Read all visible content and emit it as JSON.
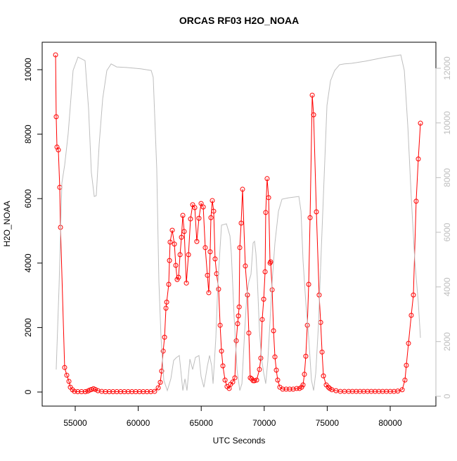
{
  "chart_data": {
    "type": "line",
    "title": "ORCAS RF03 H2O_NOAA",
    "x_label": "UTC Seconds",
    "y_label": "H2O_NOAA",
    "xlim": [
      52377,
      83627
    ],
    "ylim": [
      -437,
      10852
    ],
    "y2lim": [
      -360,
      12953
    ],
    "xticks": [
      55000,
      60000,
      65000,
      70000,
      75000,
      80000
    ],
    "yticks": [
      0,
      2000,
      4000,
      6000,
      8000,
      10000
    ],
    "y2ticks": [
      0,
      2000,
      4000,
      6000,
      8000,
      10000,
      12000
    ],
    "series": [
      {
        "color": "#ff0000",
        "marker": "circle",
        "x": [
          53440,
          53490,
          53550,
          53660,
          53770,
          53830,
          54160,
          54330,
          54500,
          54610,
          54780,
          54940,
          55200,
          55500,
          55800,
          56000,
          56150,
          56300,
          56450,
          56600,
          56800,
          57100,
          57400,
          57700,
          58000,
          58300,
          58600,
          58900,
          59200,
          59500,
          59800,
          60100,
          60400,
          60700,
          61000,
          61300,
          61585,
          61750,
          61860,
          61980,
          62090,
          62200,
          62260,
          62420,
          62480,
          62530,
          62700,
          62870,
          62980,
          63090,
          63200,
          63320,
          63430,
          63540,
          63650,
          63820,
          63990,
          64150,
          64320,
          64490,
          64650,
          64820,
          64990,
          65160,
          65320,
          65490,
          65600,
          65710,
          65770,
          65880,
          65990,
          66100,
          66220,
          66380,
          66500,
          66610,
          66720,
          66890,
          67050,
          67220,
          67330,
          67500,
          67670,
          67780,
          67890,
          67950,
          68010,
          68060,
          68170,
          68280,
          68500,
          68670,
          68780,
          68890,
          69000,
          69120,
          69230,
          69400,
          69620,
          69730,
          69840,
          69960,
          70070,
          70120,
          70230,
          70350,
          70460,
          70510,
          70630,
          70740,
          70850,
          70960,
          71070,
          71240,
          71460,
          71740,
          72020,
          72300,
          72580,
          72800,
          72970,
          73080,
          73190,
          73300,
          73420,
          73530,
          73640,
          73810,
          73920,
          74140,
          74360,
          74480,
          74590,
          74700,
          74920,
          75090,
          75200,
          75370,
          75700,
          76040,
          76370,
          76700,
          77000,
          77300,
          77600,
          77900,
          78200,
          78500,
          78800,
          79100,
          79400,
          79700,
          80000,
          80300,
          80600,
          80950,
          81170,
          81280,
          81450,
          81670,
          81840,
          82060,
          82230,
          82400
        ],
        "values": [
          10460,
          8540,
          7600,
          7510,
          6350,
          5110,
          760,
          520,
          330,
          150,
          70,
          20,
          10,
          10,
          10,
          30,
          60,
          80,
          100,
          80,
          40,
          20,
          10,
          10,
          10,
          10,
          10,
          10,
          10,
          10,
          10,
          10,
          10,
          10,
          10,
          20,
          130,
          300,
          650,
          1270,
          1700,
          2600,
          2790,
          3340,
          4080,
          4650,
          5020,
          4590,
          3930,
          3490,
          3560,
          4260,
          4800,
          5480,
          4980,
          3380,
          4260,
          5370,
          5810,
          5720,
          4670,
          5390,
          5850,
          5740,
          4480,
          3620,
          3080,
          4350,
          5410,
          5940,
          5610,
          4130,
          3670,
          3190,
          2070,
          1270,
          810,
          370,
          170,
          110,
          240,
          310,
          440,
          1590,
          2120,
          2360,
          2640,
          4480,
          5240,
          6290,
          3910,
          3010,
          1830,
          440,
          410,
          350,
          350,
          370,
          700,
          1050,
          2250,
          2880,
          3730,
          5570,
          6620,
          6030,
          4000,
          4040,
          3170,
          1900,
          1090,
          680,
          370,
          150,
          90,
          90,
          90,
          90,
          110,
          110,
          150,
          220,
          550,
          1110,
          2070,
          3340,
          5410,
          9210,
          8600,
          5590,
          3010,
          2160,
          1240,
          500,
          220,
          150,
          110,
          70,
          40,
          20,
          20,
          20,
          20,
          20,
          20,
          20,
          20,
          20,
          20,
          20,
          20,
          20,
          20,
          20,
          30,
          70,
          370,
          830,
          1510,
          2380,
          3010,
          5920,
          7230,
          8340
        ]
      },
      {
        "color": "#bebebe",
        "axis": "y2",
        "x": [
          53490,
          53720,
          53940,
          54160,
          54440,
          54830,
          55220,
          55780,
          56060,
          56280,
          56510,
          56670,
          56900,
          57180,
          57510,
          57850,
          58290,
          59070,
          60190,
          61030,
          61190,
          61470,
          61640,
          61810,
          62030,
          62310,
          62590,
          62810,
          63040,
          63260,
          63430,
          63540,
          63710,
          63870,
          64100,
          64320,
          64540,
          64820,
          64990,
          65210,
          65490,
          65660,
          65830,
          65940,
          66160,
          66330,
          66610,
          67000,
          67280,
          67390,
          67610,
          67840,
          68060,
          68230,
          68450,
          68620,
          68780,
          68950,
          69120,
          69230,
          69340,
          69450,
          69620,
          69790,
          69960,
          70120,
          70290,
          70460,
          70630,
          70850,
          71130,
          71410,
          71910,
          72750,
          72920,
          73080,
          73300,
          73530,
          73750,
          73920,
          74090,
          74310,
          74530,
          74760,
          74980,
          75260,
          75590,
          75980,
          76370,
          76930,
          78050,
          79440,
          80840,
          81120,
          81400,
          81670,
          81950,
          82230,
          82400
        ],
        "values": [
          980,
          4070,
          7800,
          8450,
          9610,
          11920,
          12410,
          12280,
          10510,
          8190,
          7310,
          7340,
          9220,
          10890,
          11920,
          12160,
          12050,
          12030,
          11980,
          11920,
          11670,
          8320,
          4200,
          2140,
          590,
          210,
          640,
          1310,
          1420,
          1490,
          720,
          210,
          640,
          210,
          1360,
          980,
          1420,
          1490,
          720,
          330,
          1110,
          1490,
          1110,
          460,
          2140,
          4200,
          6260,
          6310,
          5870,
          5230,
          2910,
          980,
          210,
          460,
          2400,
          3680,
          4200,
          4460,
          5610,
          5670,
          5230,
          4330,
          2400,
          1360,
          850,
          460,
          1310,
          2760,
          4200,
          5610,
          6770,
          7210,
          7260,
          7310,
          6770,
          4970,
          3430,
          2140,
          590,
          210,
          850,
          2650,
          5360,
          8060,
          10640,
          11540,
          11920,
          12130,
          12160,
          12180,
          12260,
          12390,
          12490,
          11920,
          9860,
          7290,
          4970,
          3430,
          2140
        ]
      }
    ]
  }
}
